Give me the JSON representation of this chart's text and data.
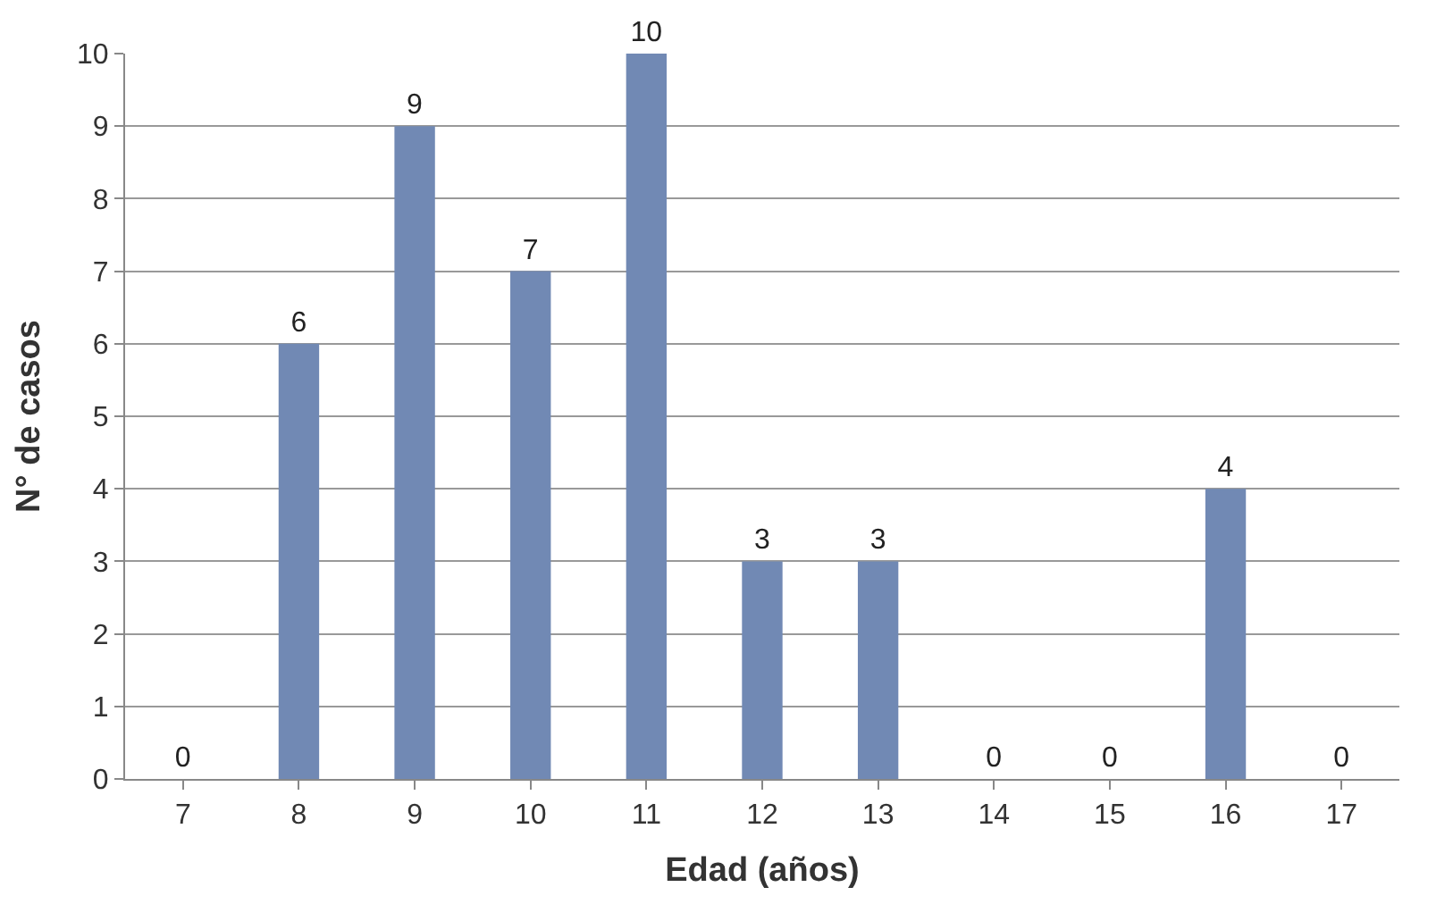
{
  "chart_data": {
    "type": "bar",
    "xlabel": "Edad (años)",
    "ylabel": "N° de casos",
    "categories": [
      "7",
      "8",
      "9",
      "10",
      "11",
      "12",
      "13",
      "14",
      "15",
      "16",
      "17"
    ],
    "values": [
      0,
      6,
      9,
      7,
      10,
      3,
      3,
      0,
      0,
      4,
      0
    ],
    "color": "#7189b4",
    "ylim": [
      0,
      10
    ],
    "yticks": [
      0,
      1,
      2,
      3,
      4,
      5,
      6,
      7,
      8,
      9,
      10
    ],
    "grid": "y",
    "data_labels": true,
    "legend": false
  }
}
